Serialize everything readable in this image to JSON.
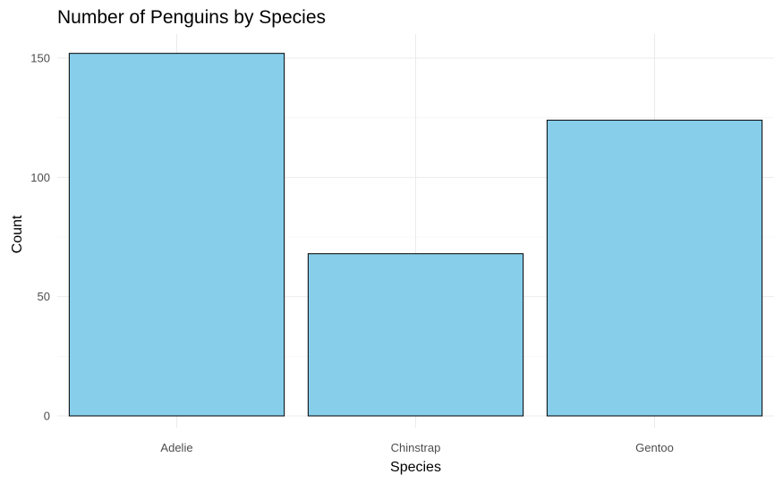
{
  "chart_data": {
    "type": "bar",
    "title": "Number of Penguins by Species",
    "xlabel": "Species",
    "ylabel": "Count",
    "categories": [
      "Adelie",
      "Chinstrap",
      "Gentoo"
    ],
    "values": [
      152,
      68,
      124
    ],
    "ylim": [
      0,
      160
    ],
    "yticks": [
      0,
      50,
      100,
      150
    ],
    "bar_color": "#87CEEB",
    "bar_border_color": "#000000",
    "grid": true,
    "legend": "none"
  }
}
